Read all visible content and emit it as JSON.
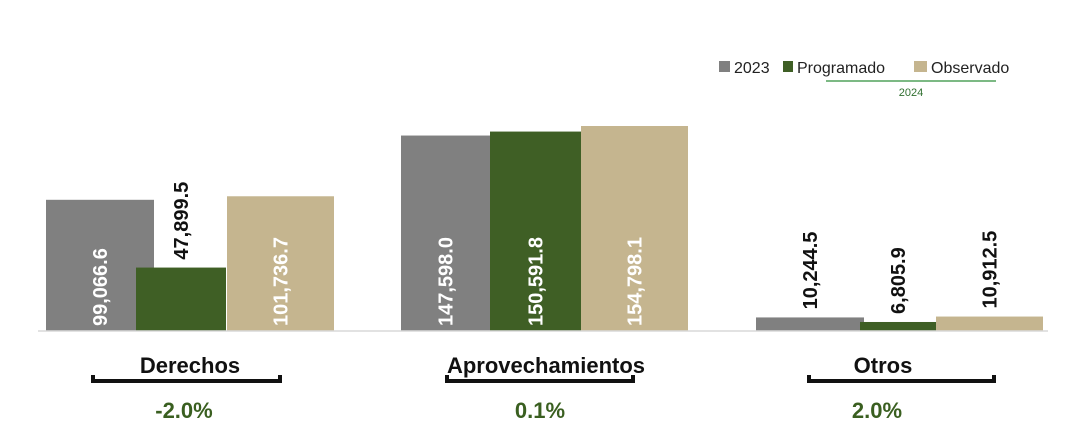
{
  "chart_data": {
    "type": "bar",
    "categories": [
      "Derechos",
      "Aprovechamientos",
      "Otros"
    ],
    "series": [
      {
        "name": "2023",
        "color": "#808080",
        "values": [
          99066.6,
          147598.0,
          10244.5
        ],
        "labels": [
          "99,066.6",
          "147,598.0",
          "10,244.5"
        ]
      },
      {
        "name": "Programado",
        "color": "#3f5f25",
        "values": [
          47899.5,
          150591.8,
          6805.9
        ],
        "labels": [
          "47,899.5",
          "150,591.8",
          "6,805.9"
        ]
      },
      {
        "name": "Observado",
        "color": "#c5b58f",
        "values": [
          101736.7,
          154798.1,
          10912.5
        ],
        "labels": [
          "101,736.7",
          "154,798.1",
          "10,912.5"
        ]
      }
    ],
    "legend_group_label": "2024",
    "legend_position": "top-right",
    "percentages": [
      "-2.0%",
      "0.1%",
      "2.0%"
    ],
    "grid": false
  }
}
